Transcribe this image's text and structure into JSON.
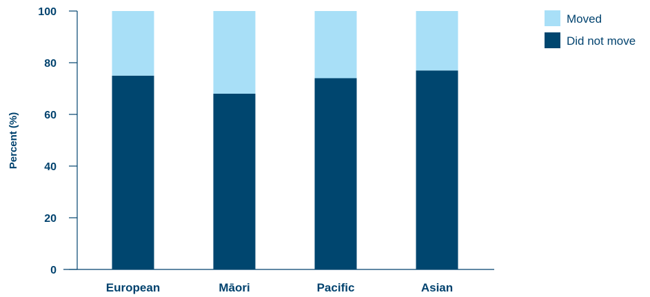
{
  "chart_data": {
    "type": "bar",
    "stacked": true,
    "categories": [
      "European",
      "Māori",
      "Pacific",
      "Asian"
    ],
    "series": [
      {
        "name": "Did not move",
        "values": [
          75,
          68,
          74,
          77
        ],
        "color": "#00466f"
      },
      {
        "name": "Moved",
        "values": [
          25,
          32,
          26,
          23
        ],
        "color": "#a8dff7"
      }
    ],
    "title": "",
    "xlabel": "",
    "ylabel": "Percent (%)",
    "ylim": [
      0,
      100
    ],
    "yticks": [
      "0",
      "20",
      "40",
      "60",
      "80",
      "100"
    ],
    "legend_position": "top-right",
    "grid": false
  }
}
